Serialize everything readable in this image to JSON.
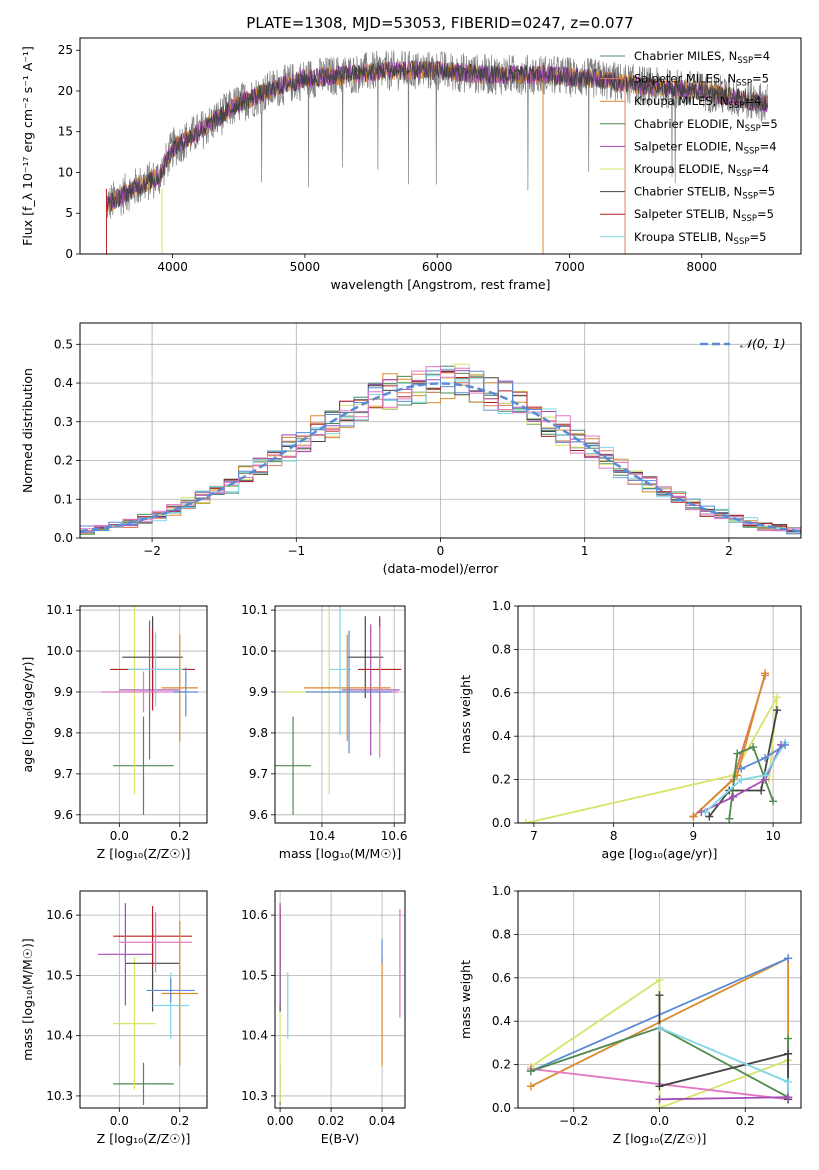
{
  "figure": {
    "title": "PLATE=1308, MJD=53053, FIBERID=0247, z=0.077"
  },
  "chart_data": [
    {
      "id": "spectrum",
      "type": "line",
      "xlabel": "wavelength [Angstrom, rest frame]",
      "ylabel": "Flux [f_λ 10⁻¹⁷ erg cm⁻² s⁻¹ A⁻¹]",
      "xlim": [
        3300,
        8750
      ],
      "ylim": [
        0,
        26.5
      ],
      "xticks": [
        4000,
        5000,
        6000,
        7000,
        8000
      ],
      "yticks": [
        0,
        5,
        10,
        15,
        20,
        25
      ],
      "grid": false,
      "legend_position": "top-right",
      "legend": [
        {
          "label": "Chabrier MILES, N",
          "sub": "SSP",
          "tail": "=4",
          "color": "#4c8c6e"
        },
        {
          "label": "Salpeter MILES, N",
          "sub": "SSP",
          "tail": "=5",
          "color": "#e07a5f"
        },
        {
          "label": "Kroupa MILES, N",
          "sub": "SSP",
          "tail": "=4",
          "color": "#d98b2b"
        },
        {
          "label": "Chabrier ELODIE, N",
          "sub": "SSP",
          "tail": "=5",
          "color": "#4f8a4f"
        },
        {
          "label": "Salpeter ELODIE, N",
          "sub": "SSP",
          "tail": "=4",
          "color": "#a34bb7"
        },
        {
          "label": "Kroupa ELODIE, N",
          "sub": "SSP",
          "tail": "=4",
          "color": "#d9e36a"
        },
        {
          "label": "Chabrier STELIB, N",
          "sub": "SSP",
          "tail": "=5",
          "color": "#444444"
        },
        {
          "label": "Salpeter STELIB, N",
          "sub": "SSP",
          "tail": "=5",
          "color": "#b22222"
        },
        {
          "label": "Kroupa STELIB, N",
          "sub": "SSP",
          "tail": "=5",
          "color": "#7fd6e6"
        }
      ],
      "continuum": {
        "x": [
          3500,
          3700,
          3900,
          4000,
          4200,
          4500,
          4800,
          5000,
          5300,
          5600,
          6000,
          6400,
          6800,
          7200,
          7600,
          8000,
          8300,
          8500
        ],
        "y": [
          6,
          8,
          9.5,
          13,
          15,
          18.5,
          20.5,
          21.5,
          22,
          22.5,
          22.5,
          22,
          22,
          21.5,
          20.5,
          20,
          19,
          18.5
        ]
      },
      "model_steps": [
        {
          "x": 6800,
          "ymax": 21.5,
          "color": "#d98b2b"
        },
        {
          "x": 7420,
          "ymax": 22,
          "color": "#e07a5f"
        },
        {
          "x": 3920,
          "ymax": 8,
          "color": "#d9e36a"
        }
      ]
    },
    {
      "id": "residuals",
      "type": "step",
      "xlabel": "(data-model)/error",
      "ylabel": "Normed distribution",
      "xlim": [
        -2.5,
        2.5
      ],
      "ylim": [
        0,
        0.555
      ],
      "xticks": [
        -2,
        -1,
        0,
        1,
        2
      ],
      "yticks": [
        0.0,
        0.1,
        0.2,
        0.3,
        0.4,
        0.5
      ],
      "grid": true,
      "legend_position": "top-right",
      "gaussian_label": "𝒩(0, 1)",
      "gaussian_color": "#5b8bd6",
      "bin_width": 0.1,
      "hist_colors": [
        "#4c8c6e",
        "#e07a5f",
        "#d98b2b",
        "#4f8a4f",
        "#a34bb7",
        "#d9e36a",
        "#444444",
        "#b22222",
        "#7fd6e6",
        "#5b8bd6",
        "#e377c2"
      ]
    },
    {
      "id": "age-vs-Z",
      "type": "errorbar",
      "xlabel": "Z [log₁₀(Z/Z☉)]",
      "ylabel": "age  [log₁₀(age/yr)]",
      "xlim": [
        -0.13,
        0.29
      ],
      "ylim": [
        9.58,
        10.11
      ],
      "xticks": [
        0.0,
        0.2
      ],
      "yticks": [
        9.6,
        9.7,
        9.8,
        9.9,
        10.0,
        10.1
      ],
      "grid": true,
      "points": [
        {
          "x": 0.08,
          "y": 9.72,
          "xerr": 0.1,
          "yerr": 0.12,
          "color": "#4f8a4f"
        },
        {
          "x": 0.05,
          "y": 9.9,
          "xerr": 0.08,
          "yerr": 0.25,
          "color": "#d9e36a"
        },
        {
          "x": 0.11,
          "y": 9.985,
          "xerr": 0.1,
          "yerr": 0.1,
          "color": "#444444"
        },
        {
          "x": 0.11,
          "y": 9.955,
          "xerr": 0.14,
          "yerr": 0.1,
          "color": "#b22222"
        },
        {
          "x": 0.1,
          "y": 9.905,
          "xerr": 0.1,
          "yerr": 0.17,
          "color": "#a34bb7"
        },
        {
          "x": 0.2,
          "y": 9.91,
          "xerr": 0.06,
          "yerr": 0.13,
          "color": "#d98b2b"
        },
        {
          "x": 0.12,
          "y": 9.955,
          "xerr": 0.09,
          "yerr": 0.09,
          "color": "#7fd6e6"
        },
        {
          "x": 0.08,
          "y": 9.9,
          "xerr": 0.14,
          "yerr": 0.05,
          "color": "#e377c2"
        },
        {
          "x": 0.22,
          "y": 9.9,
          "xerr": 0.04,
          "yerr": 0.06,
          "color": "#5b8bd6"
        }
      ]
    },
    {
      "id": "age-vs-mass",
      "type": "errorbar",
      "xlabel": "mass [log₁₀(M/M☉)]",
      "ylabel": "",
      "xlim": [
        10.27,
        10.63
      ],
      "ylim": [
        9.58,
        10.11
      ],
      "xticks": [
        10.4,
        10.6
      ],
      "yticks": [
        9.6,
        9.7,
        9.8,
        9.9,
        10.0,
        10.1
      ],
      "grid": true,
      "points": [
        {
          "x": 10.32,
          "y": 9.72,
          "xerr": 0.05,
          "yerr": 0.12,
          "color": "#4f8a4f"
        },
        {
          "x": 10.42,
          "y": 9.9,
          "xerr": 0.12,
          "yerr": 0.25,
          "color": "#d9e36a"
        },
        {
          "x": 10.52,
          "y": 9.985,
          "xerr": 0.05,
          "yerr": 0.1,
          "color": "#444444"
        },
        {
          "x": 10.56,
          "y": 9.955,
          "xerr": 0.06,
          "yerr": 0.13,
          "color": "#b22222"
        },
        {
          "x": 10.535,
          "y": 9.905,
          "xerr": 0.08,
          "yerr": 0.16,
          "color": "#a34bb7"
        },
        {
          "x": 10.47,
          "y": 9.91,
          "xerr": 0.12,
          "yerr": 0.13,
          "color": "#d98b2b"
        },
        {
          "x": 10.45,
          "y": 9.955,
          "xerr": 0.03,
          "yerr": 0.16,
          "color": "#7fd6e6"
        },
        {
          "x": 10.56,
          "y": 9.9,
          "xerr": 0.05,
          "yerr": 0.16,
          "color": "#e377c2"
        },
        {
          "x": 10.475,
          "y": 9.9,
          "xerr": 0.12,
          "yerr": 0.15,
          "color": "#5b8bd6"
        }
      ]
    },
    {
      "id": "weight-vs-age",
      "type": "line",
      "xlabel": "age  [log₁₀(age/yr)]",
      "ylabel": "mass weight",
      "xlim": [
        6.8,
        10.35
      ],
      "ylim": [
        0,
        1.0
      ],
      "xticks": [
        7,
        8,
        9,
        10
      ],
      "yticks": [
        0.0,
        0.2,
        0.4,
        0.6,
        0.8,
        1.0
      ],
      "grid": true,
      "series": [
        {
          "color": "#d9e36a",
          "x": [
            6.9,
            9.5,
            10.05,
            9.95
          ],
          "y": [
            0.0,
            0.22,
            0.58,
            0.2
          ]
        },
        {
          "color": "#e07a5f",
          "x": [
            9.0,
            9.5,
            9.9
          ],
          "y": [
            0.03,
            0.2,
            0.68
          ]
        },
        {
          "color": "#d98b2b",
          "x": [
            9.0,
            9.55,
            9.9
          ],
          "y": [
            0.03,
            0.22,
            0.69
          ]
        },
        {
          "color": "#444444",
          "x": [
            9.2,
            9.45,
            9.85,
            10.05
          ],
          "y": [
            0.03,
            0.15,
            0.15,
            0.52
          ]
        },
        {
          "color": "#4f8a4f",
          "x": [
            9.45,
            9.55,
            9.75,
            10.0
          ],
          "y": [
            0.02,
            0.32,
            0.35,
            0.1
          ]
        },
        {
          "color": "#a34bb7",
          "x": [
            9.1,
            9.5,
            9.9,
            10.1
          ],
          "y": [
            0.05,
            0.12,
            0.2,
            0.36
          ]
        },
        {
          "color": "#7fd6e6",
          "x": [
            9.15,
            9.6,
            9.9,
            10.15
          ],
          "y": [
            0.05,
            0.2,
            0.22,
            0.37
          ]
        },
        {
          "color": "#5b8bd6",
          "x": [
            9.6,
            9.9,
            10.15
          ],
          "y": [
            0.25,
            0.3,
            0.36
          ]
        }
      ]
    },
    {
      "id": "mass-vs-Z",
      "type": "errorbar",
      "xlabel": "Z [log₁₀(Z/Z☉)]",
      "ylabel": "mass [log₁₀(M/M☉)]",
      "xlim": [
        -0.13,
        0.29
      ],
      "ylim": [
        10.28,
        10.64
      ],
      "xticks": [
        0.0,
        0.2
      ],
      "yticks": [
        10.3,
        10.4,
        10.5,
        10.6
      ],
      "grid": true,
      "points": [
        {
          "x": 0.08,
          "y": 10.32,
          "xerr": 0.1,
          "yerr": 0.035,
          "color": "#4f8a4f"
        },
        {
          "x": 0.05,
          "y": 10.42,
          "xerr": 0.07,
          "yerr": 0.11,
          "color": "#d9e36a"
        },
        {
          "x": 0.11,
          "y": 10.52,
          "xerr": 0.09,
          "yerr": 0.08,
          "color": "#444444"
        },
        {
          "x": 0.11,
          "y": 10.565,
          "xerr": 0.13,
          "yerr": 0.05,
          "color": "#b22222"
        },
        {
          "x": 0.02,
          "y": 10.535,
          "xerr": 0.09,
          "yerr": 0.085,
          "color": "#a34bb7"
        },
        {
          "x": 0.2,
          "y": 10.47,
          "xerr": 0.06,
          "yerr": 0.12,
          "color": "#d98b2b"
        },
        {
          "x": 0.17,
          "y": 10.45,
          "xerr": 0.06,
          "yerr": 0.055,
          "color": "#7fd6e6"
        },
        {
          "x": 0.12,
          "y": 10.555,
          "xerr": 0.12,
          "yerr": 0.05,
          "color": "#e377c2"
        },
        {
          "x": 0.17,
          "y": 10.475,
          "xerr": 0.08,
          "yerr": 0.02,
          "color": "#5b8bd6"
        }
      ]
    },
    {
      "id": "mass-vs-ebv",
      "type": "errorbar",
      "xlabel": "E(B-V)",
      "ylabel": "",
      "xlim": [
        -0.002,
        0.049
      ],
      "ylim": [
        10.28,
        10.64
      ],
      "xticks": [
        0.0,
        0.02,
        0.04
      ],
      "yticks": [
        10.3,
        10.4,
        10.5,
        10.6
      ],
      "grid": true,
      "points": [
        {
          "x": 0.0,
          "y": 10.32,
          "xerr": 0,
          "yerr": 0.035,
          "color": "#4f8a4f"
        },
        {
          "x": 0.0,
          "y": 10.4,
          "xerr": 0,
          "yerr": 0.11,
          "color": "#d9e36a"
        },
        {
          "x": 0.0,
          "y": 10.52,
          "xerr": 0,
          "yerr": 0.08,
          "color": "#444444"
        },
        {
          "x": 0.0,
          "y": 10.565,
          "xerr": 0,
          "yerr": 0.05,
          "color": "#b22222"
        },
        {
          "x": 0.0,
          "y": 10.535,
          "xerr": 0,
          "yerr": 0.085,
          "color": "#a34bb7"
        },
        {
          "x": 0.04,
          "y": 10.44,
          "xerr": 0,
          "yerr": 0.09,
          "color": "#d98b2b"
        },
        {
          "x": 0.003,
          "y": 10.45,
          "xerr": 0,
          "yerr": 0.055,
          "color": "#7fd6e6"
        },
        {
          "x": 0.047,
          "y": 10.52,
          "xerr": 0,
          "yerr": 0.09,
          "color": "#e377c2"
        },
        {
          "x": 0.04,
          "y": 10.54,
          "xerr": 0,
          "yerr": 0.02,
          "color": "#5b8bd6"
        }
      ]
    },
    {
      "id": "weight-vs-Z",
      "type": "line",
      "xlabel": "Z [log₁₀(Z/Z☉)]",
      "ylabel": "mass weight",
      "xlim": [
        -0.33,
        0.33
      ],
      "ylim": [
        0,
        1.0
      ],
      "xticks": [
        -0.2,
        0.0,
        0.2
      ],
      "yticks": [
        0.0,
        0.2,
        0.4,
        0.6,
        0.8,
        1.0
      ],
      "grid": true,
      "series": [
        {
          "color": "#d9e36a",
          "x": [
            -0.3,
            0.0,
            0.0,
            0.3
          ],
          "y": [
            0.19,
            0.59,
            0.0,
            0.22
          ]
        },
        {
          "color": "#d98b2b",
          "x": [
            -0.3,
            0.3,
            0.3
          ],
          "y": [
            0.1,
            0.69,
            0.05
          ]
        },
        {
          "color": "#5b8bd6",
          "x": [
            -0.3,
            0.3
          ],
          "y": [
            0.17,
            0.69
          ]
        },
        {
          "color": "#e377c2",
          "x": [
            -0.3,
            0.3
          ],
          "y": [
            0.18,
            0.04
          ]
        },
        {
          "color": "#4f8a4f",
          "x": [
            -0.3,
            0.0,
            0.3,
            0.3
          ],
          "y": [
            0.17,
            0.37,
            0.05,
            0.32
          ]
        },
        {
          "color": "#444444",
          "x": [
            0.0,
            0.0,
            0.3,
            0.3
          ],
          "y": [
            0.52,
            0.1,
            0.25,
            0.04
          ]
        },
        {
          "color": "#7fd6e6",
          "x": [
            0.0,
            0.3,
            0.3
          ],
          "y": [
            0.37,
            0.12,
            0.05
          ]
        },
        {
          "color": "#a34bb7",
          "x": [
            0.0,
            0.3
          ],
          "y": [
            0.04,
            0.05
          ]
        }
      ]
    }
  ]
}
